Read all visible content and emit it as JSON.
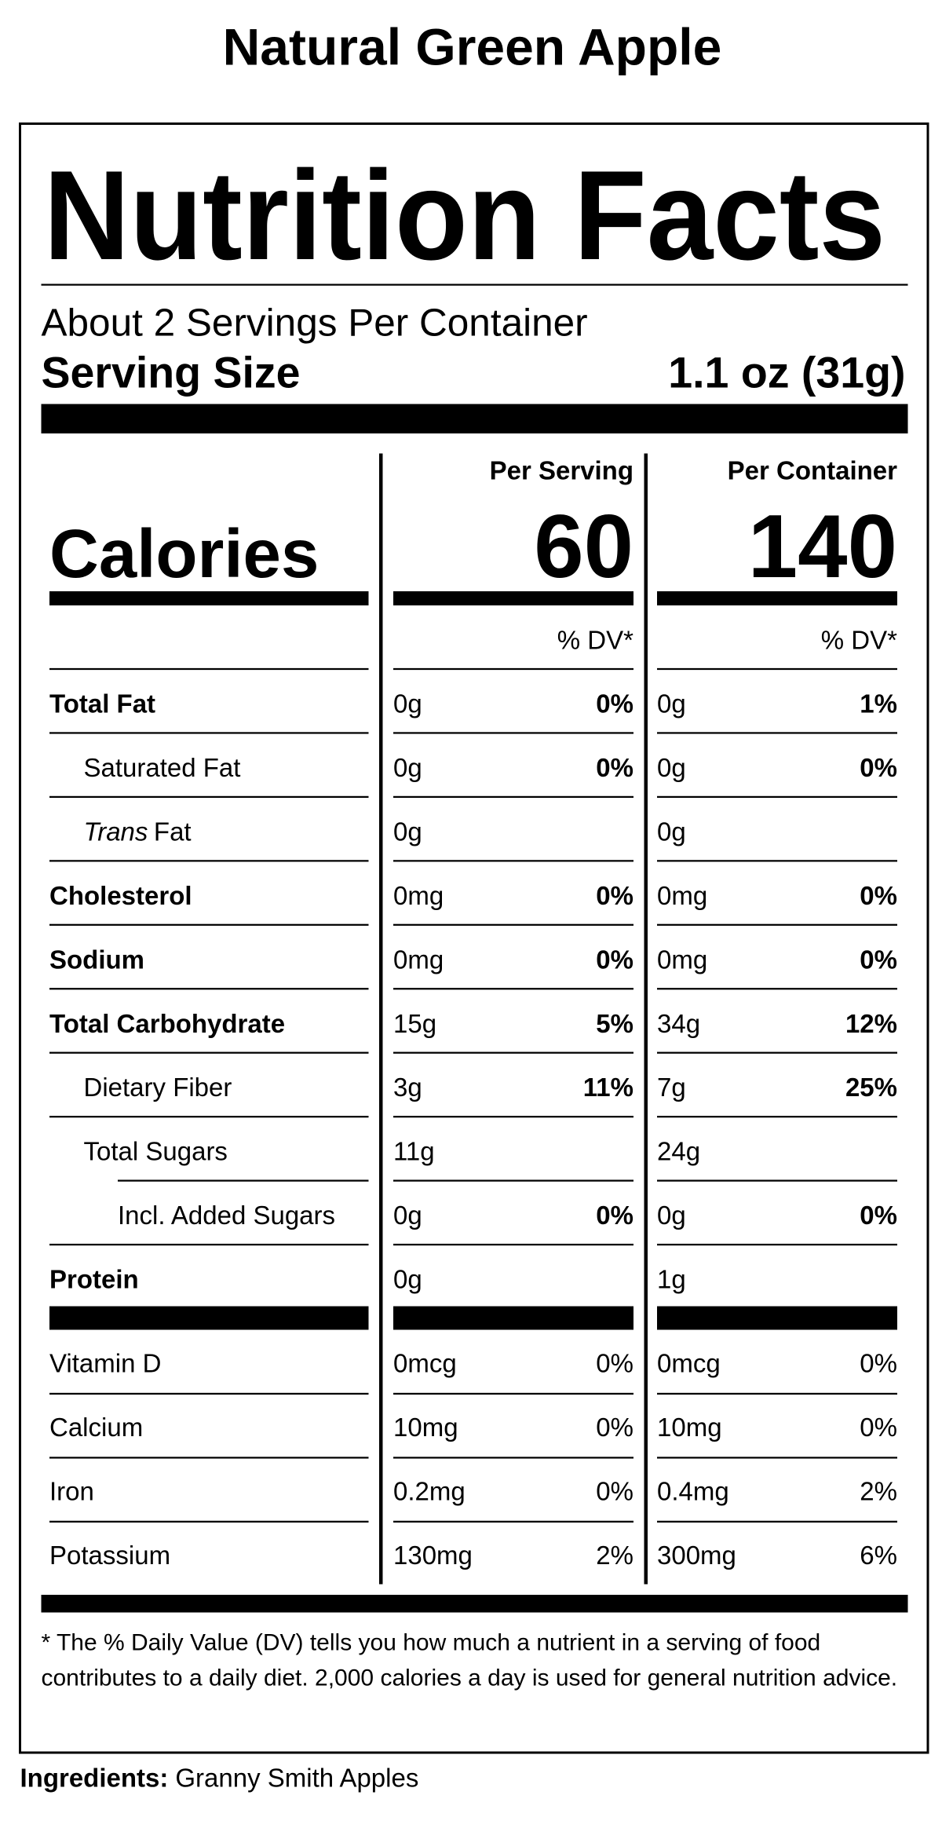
{
  "title": "Natural Green Apple",
  "label": {
    "heading": "Nutrition Facts",
    "servings": "About 2 Servings Per Container",
    "serving_size_label": "Serving Size",
    "serving_size": "1.1 oz (31g)",
    "columns": [
      "Per Serving",
      "Per Container"
    ],
    "calories_label": "Calories",
    "calories": [
      60,
      140
    ],
    "dv_headers": [
      "% DV*",
      "% DV*"
    ],
    "nutrients": [
      {
        "name": "Total Fat",
        "bold": true,
        "indent": 0,
        "serving": [
          "0g",
          "0%"
        ],
        "container": [
          "0g",
          "1%"
        ]
      },
      {
        "name": "Saturated Fat",
        "bold": false,
        "indent": 1,
        "serving": [
          "0g",
          "0%"
        ],
        "container": [
          "0g",
          "0%"
        ]
      },
      {
        "name_italic": "Trans",
        "name": "Fat",
        "bold": false,
        "indent": 1,
        "serving": [
          "0g",
          null
        ],
        "container": [
          "0g",
          null
        ]
      },
      {
        "name": "Cholesterol",
        "bold": true,
        "indent": 0,
        "serving": [
          "0mg",
          "0%"
        ],
        "container": [
          "0mg",
          "0%"
        ]
      },
      {
        "name": "Sodium",
        "bold": true,
        "indent": 0,
        "serving": [
          "0mg",
          "0%"
        ],
        "container": [
          "0mg",
          "0%"
        ]
      },
      {
        "name": "Total Carbohydrate",
        "bold": true,
        "indent": 0,
        "serving": [
          "15g",
          "5%"
        ],
        "container": [
          "34g",
          "12%"
        ]
      },
      {
        "name": "Dietary Fiber",
        "bold": false,
        "indent": 1,
        "serving": [
          "3g",
          "11%"
        ],
        "container": [
          "7g",
          "25%"
        ]
      },
      {
        "name": "Total Sugars",
        "bold": false,
        "indent": 1,
        "serving": [
          "11g",
          null
        ],
        "container": [
          "24g",
          null
        ]
      },
      {
        "name": "Incl. Added Sugars",
        "bold": false,
        "indent": 2,
        "serving": [
          "0g",
          "0%"
        ],
        "container": [
          "0g",
          "0%"
        ]
      },
      {
        "name": "Protein",
        "bold": true,
        "indent": 0,
        "serving": [
          "0g",
          null
        ],
        "container": [
          "1g",
          null
        ]
      }
    ],
    "vitamins": [
      {
        "name": "Vitamin D",
        "serving": [
          "0mcg",
          "0%"
        ],
        "container": [
          "0mcg",
          "0%"
        ]
      },
      {
        "name": "Calcium",
        "serving": [
          "10mg",
          "0%"
        ],
        "container": [
          "10mg",
          "0%"
        ]
      },
      {
        "name": "Iron",
        "serving": [
          "0.2mg",
          "0%"
        ],
        "container": [
          "0.4mg",
          "2%"
        ]
      },
      {
        "name": "Potassium",
        "serving": [
          "130mg",
          "2%"
        ],
        "container": [
          "300mg",
          "6%"
        ]
      }
    ],
    "footnote": "* The % Daily Value (DV) tells you how much a nutrient in a serving of food contributes to a daily diet. 2,000 calories a day is used for general nutrition advice."
  },
  "ingredients_label": "Ingredients:",
  "ingredients": "Granny Smith Apples"
}
